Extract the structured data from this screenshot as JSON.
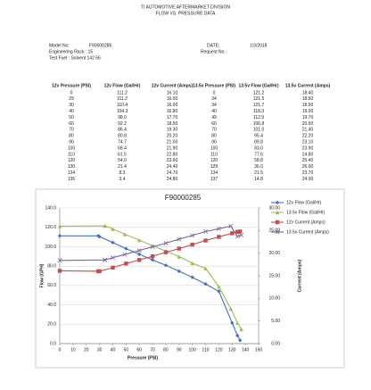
{
  "header": {
    "division": "TI AUTOMOTIVE AFTERMARKET DIVISION",
    "subtitle": "FLOW  VS.  PRESSURE DATA",
    "model_label": "Model No:",
    "model": "F90000285",
    "date_label": "DATE:",
    "date": "1/3/2018",
    "rack": "Engineering Rack : 15",
    "request_label": "Request No.:",
    "fuel": "Test Fuel : Solvent 142 66"
  },
  "table": {
    "columns": [
      "12v Pressure (PSI)",
      "12v Flow (Gal/Hr)",
      "12v Current (Amps)",
      "13.5v Pressure (PSI)",
      "13.5v Flow (Gal/Hr)",
      "13.5v Current (Amps)"
    ],
    "rows": [
      [
        "0",
        "111.2",
        "16.10",
        "0",
        "121.2",
        "18.40"
      ],
      [
        "29",
        "111.2",
        "16.00",
        "34",
        "121.5",
        "18.50"
      ],
      [
        "30",
        "110.4",
        "16.00",
        "34",
        "121.7",
        "18.50"
      ],
      [
        "40",
        "104.3",
        "16.80",
        "40",
        "118.3",
        "19.00"
      ],
      [
        "50",
        "98.0",
        "17.70",
        "49",
        "112.9",
        "19.70"
      ],
      [
        "60",
        "92.2",
        "18.50",
        "60",
        "106.8",
        "20.60"
      ],
      [
        "70",
        "86.4",
        "19.30",
        "70",
        "101.0",
        "21.40"
      ],
      [
        "80",
        "80.8",
        "20.20",
        "80",
        "95.4",
        "22.20"
      ],
      [
        "90",
        "74.7",
        "21.00",
        "90",
        "89.8",
        "23.10"
      ],
      [
        "100",
        "68.4",
        "21.90",
        "100",
        "83.0",
        "23.90"
      ],
      [
        "110",
        "61.5",
        "22.80",
        "110",
        "77.6",
        "24.80"
      ],
      [
        "120",
        "54.0",
        "23.60",
        "120",
        "58.8",
        "25.40"
      ],
      [
        "130",
        "21.4",
        "24.40",
        "129",
        "36.0",
        "26.00"
      ],
      [
        "134",
        "8.3",
        "24.70",
        "134",
        "21.5",
        "23.70"
      ],
      [
        "136",
        "3.4",
        "24.80",
        "137",
        "14.8",
        "24.00"
      ]
    ]
  },
  "chart_data": {
    "type": "line",
    "title": "F90000285",
    "x_label": "Pressure (PSI)",
    "y_label": "Flow (GPH)",
    "y2_label": "Current (Amps)",
    "xlim": [
      0,
      150
    ],
    "xticks": [
      0,
      10,
      20,
      30,
      40,
      50,
      60,
      70,
      80,
      90,
      100,
      110,
      120,
      130,
      140,
      150
    ],
    "ylim": [
      0,
      140
    ],
    "yticks": [
      {
        "value": 0,
        "label": "0.0"
      },
      {
        "value": 20,
        "label": "20.0"
      },
      {
        "value": 40,
        "label": "40.0"
      },
      {
        "value": 60,
        "label": "60.0"
      },
      {
        "value": 80,
        "label": "80.0"
      },
      {
        "value": 100,
        "label": "100.0"
      },
      {
        "value": 120,
        "label": "120.0"
      },
      {
        "value": 140,
        "label": "140.0"
      }
    ],
    "y2lim": [
      0,
      30
    ],
    "y2ticks": [
      {
        "value": 0,
        "label": "0.00"
      },
      {
        "value": 5,
        "label": "5.00"
      },
      {
        "value": 10,
        "label": "10.00"
      },
      {
        "value": 15,
        "label": "15.00"
      },
      {
        "value": 20,
        "label": "20.00"
      },
      {
        "value": 25,
        "label": "25.00"
      },
      {
        "value": 30,
        "label": "30.00"
      }
    ],
    "grid": true,
    "series": [
      {
        "name": "12v Flow (Gal/Hr)",
        "color": "#4472c4",
        "marker": "diamond",
        "x": [
          0,
          29,
          30,
          40,
          50,
          60,
          70,
          80,
          90,
          100,
          110,
          120,
          130,
          134,
          136
        ],
        "values": [
          111.2,
          111.2,
          110.4,
          104.3,
          98.0,
          92.2,
          86.4,
          80.8,
          74.7,
          68.4,
          61.5,
          54.0,
          21.4,
          8.3,
          3.4
        ]
      },
      {
        "name": "13.5v Flow (Gal/Hr)",
        "color": "#9bbb59",
        "marker": "triangle",
        "x": [
          0,
          34,
          34,
          40,
          49,
          60,
          70,
          80,
          90,
          100,
          110,
          120,
          129,
          134,
          137
        ],
        "values": [
          121.2,
          121.5,
          121.7,
          118.3,
          112.9,
          106.8,
          101.0,
          95.4,
          89.8,
          83.0,
          77.6,
          58.8,
          36.0,
          21.5,
          14.8
        ]
      },
      {
        "name": "12v Current (Amps)",
        "color": "#c0504d",
        "marker": "square",
        "axis": "y2",
        "x": [
          0,
          29,
          30,
          40,
          50,
          60,
          70,
          80,
          90,
          100,
          110,
          120,
          130,
          134,
          136
        ],
        "values": [
          16.1,
          16.0,
          16.0,
          16.8,
          17.7,
          18.5,
          19.3,
          20.2,
          21.0,
          21.9,
          22.8,
          23.6,
          24.4,
          24.7,
          24.8
        ]
      },
      {
        "name": "13.5v Current (Amps)",
        "color": "#8064a2",
        "marker": "cross",
        "axis": "y2",
        "x": [
          0,
          34,
          34,
          40,
          49,
          60,
          70,
          80,
          90,
          100,
          110,
          120,
          129,
          134,
          137
        ],
        "values": [
          18.4,
          18.5,
          18.5,
          19.0,
          19.7,
          20.6,
          21.4,
          22.2,
          23.1,
          23.9,
          24.8,
          25.4,
          26.0,
          23.7,
          24.0
        ]
      }
    ]
  }
}
